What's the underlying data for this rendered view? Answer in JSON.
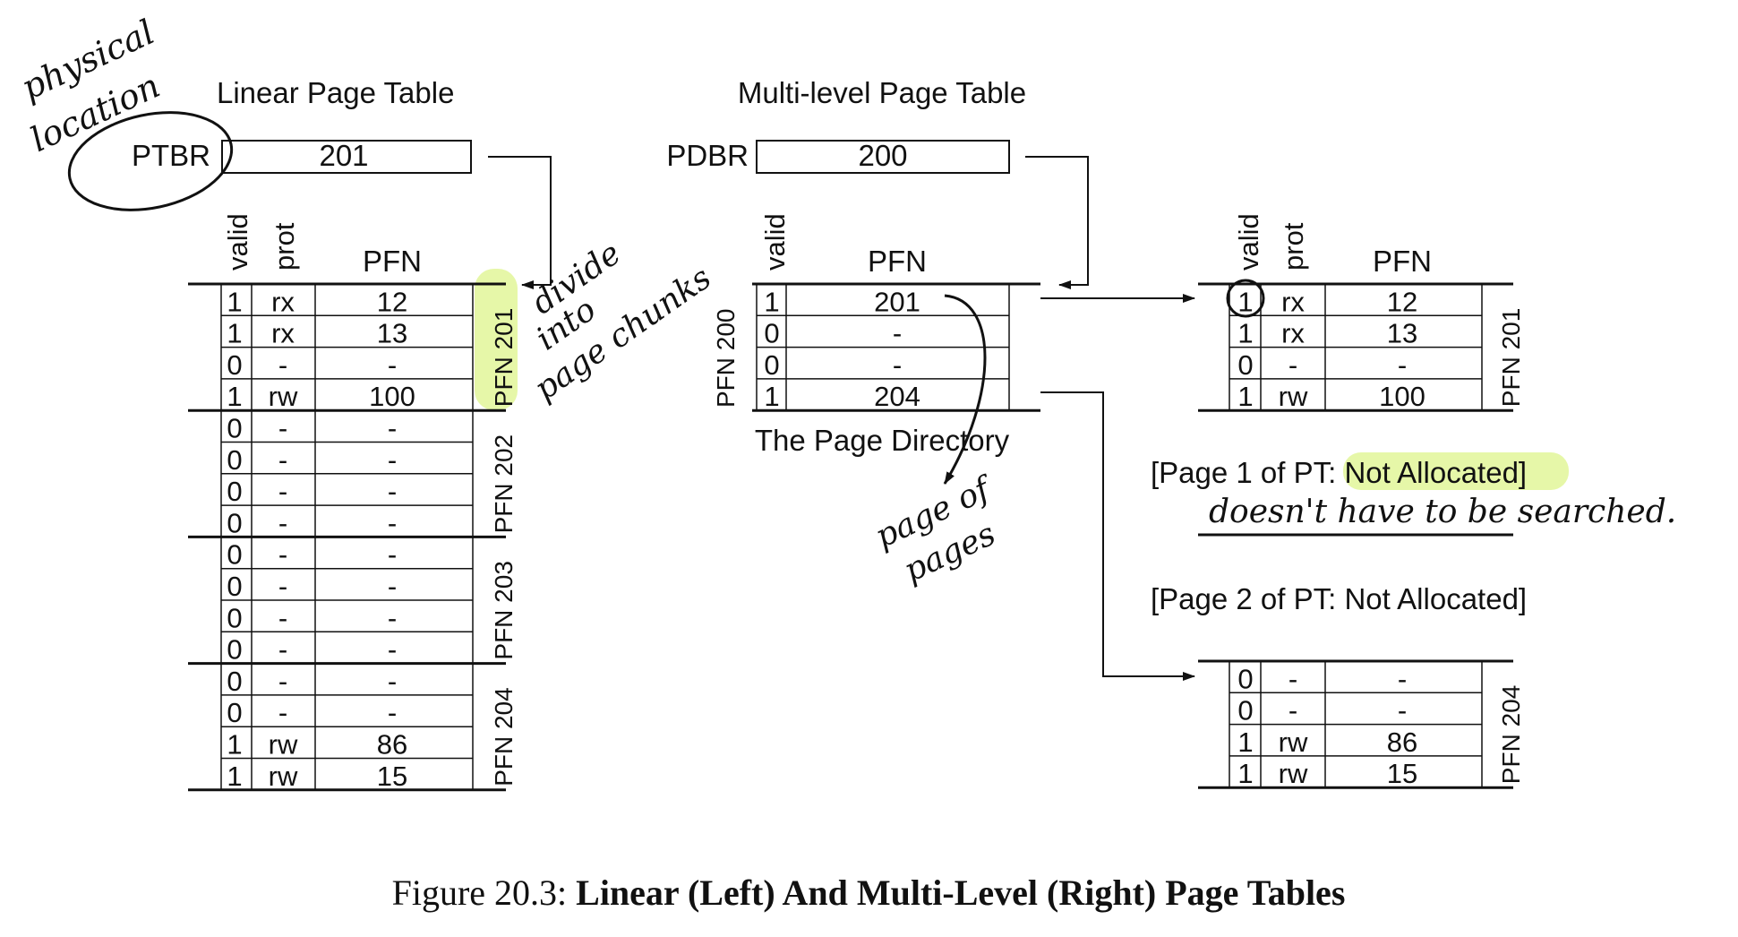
{
  "linear": {
    "title": "Linear Page Table",
    "register_label": "PTBR",
    "register_value": "201",
    "headers": [
      "valid",
      "prot",
      "PFN"
    ],
    "groups": [
      {
        "label": "PFN 201",
        "rows": [
          [
            "1",
            "rx",
            "12"
          ],
          [
            "1",
            "rx",
            "13"
          ],
          [
            "0",
            "-",
            "-"
          ],
          [
            "1",
            "rw",
            "100"
          ]
        ]
      },
      {
        "label": "PFN 202",
        "rows": [
          [
            "0",
            "-",
            "-"
          ],
          [
            "0",
            "-",
            "-"
          ],
          [
            "0",
            "-",
            "-"
          ],
          [
            "0",
            "-",
            "-"
          ]
        ]
      },
      {
        "label": "PFN 203",
        "rows": [
          [
            "0",
            "-",
            "-"
          ],
          [
            "0",
            "-",
            "-"
          ],
          [
            "0",
            "-",
            "-"
          ],
          [
            "0",
            "-",
            "-"
          ]
        ]
      },
      {
        "label": "PFN 204",
        "rows": [
          [
            "0",
            "-",
            "-"
          ],
          [
            "0",
            "-",
            "-"
          ],
          [
            "1",
            "rw",
            "86"
          ],
          [
            "1",
            "rw",
            "15"
          ]
        ]
      }
    ]
  },
  "multilevel": {
    "title": "Multi-level Page Table",
    "register_label": "PDBR",
    "register_value": "200",
    "directory": {
      "headers": [
        "valid",
        "PFN"
      ],
      "label": "PFN 200",
      "rows": [
        [
          "1",
          "201"
        ],
        [
          "0",
          "-"
        ],
        [
          "0",
          "-"
        ],
        [
          "1",
          "204"
        ]
      ],
      "caption": "The Page Directory"
    },
    "page_201": {
      "headers": [
        "valid",
        "prot",
        "PFN"
      ],
      "label": "PFN 201",
      "rows": [
        [
          "1",
          "rx",
          "12"
        ],
        [
          "1",
          "rx",
          "13"
        ],
        [
          "0",
          "-",
          "-"
        ],
        [
          "1",
          "rw",
          "100"
        ]
      ]
    },
    "not_allocated": [
      "[Page 1 of PT: Not Allocated]",
      "[Page 2 of PT: Not Allocated]"
    ],
    "page_204": {
      "label": "PFN 204",
      "rows": [
        [
          "0",
          "-",
          "-"
        ],
        [
          "0",
          "-",
          "-"
        ],
        [
          "1",
          "rw",
          "86"
        ],
        [
          "1",
          "rw",
          "15"
        ]
      ]
    }
  },
  "caption": {
    "prefix": "Figure 20.3:",
    "title": "Linear (Left) And Multi-Level (Right) Page Tables"
  },
  "annotations": {
    "physical_location": [
      "physical",
      "location"
    ],
    "divide": [
      "divide",
      "into",
      "page chunks"
    ],
    "page_of_pages": [
      "page of",
      "pages"
    ],
    "searched": "doesn't have to be searched."
  },
  "colors": {
    "ink": "#111111",
    "highlight": "#e6f7a8"
  }
}
